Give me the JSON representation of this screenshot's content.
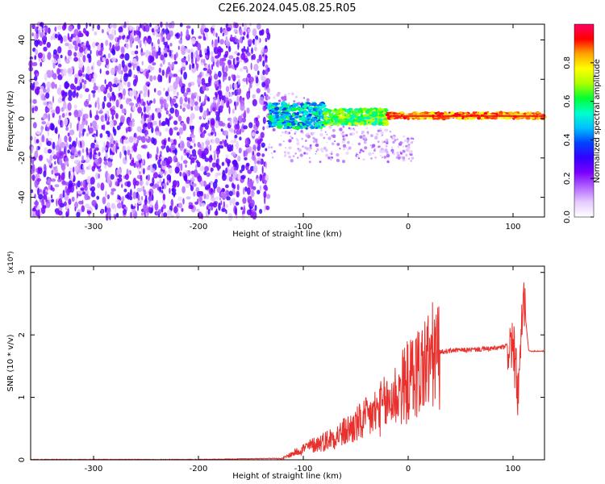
{
  "title": "C2E6.2024.045.08.25.R05",
  "chart_data": [
    {
      "type": "heatmap",
      "xlabel": "Height of straight line (km)",
      "ylabel": "Frequency (Hz)",
      "xlim": [
        -360,
        130
      ],
      "ylim": [
        -50,
        48
      ],
      "xticks": [
        -300,
        -200,
        -100,
        0,
        100
      ],
      "yticks": [
        -40,
        -20,
        0,
        20,
        40
      ],
      "colorbar": {
        "label": "Normalized spectral amplitude",
        "range": [
          0.0,
          1.0
        ],
        "ticks": [
          0.0,
          0.2,
          0.4,
          0.6,
          0.8
        ],
        "colormap": [
          "#ffffff",
          "#e6ccff",
          "#b366ff",
          "#7a00ff",
          "#3300ff",
          "#0044ff",
          "#00bfff",
          "#00ffcc",
          "#00ff33",
          "#aaff00",
          "#ffff00",
          "#ffa500",
          "#ff0000",
          "#ff0066"
        ]
      },
      "regions": [
        {
          "x": [
            -360,
            -133
          ],
          "freq": [
            -50,
            48
          ],
          "amplitude": [
            0.05,
            0.3
          ],
          "description": "noise"
        },
        {
          "x": [
            -133,
            -80
          ],
          "freq": [
            -5,
            8
          ],
          "amplitude": [
            0.35,
            0.65
          ]
        },
        {
          "x": [
            -80,
            -20
          ],
          "freq": [
            -3,
            5
          ],
          "amplitude": [
            0.5,
            0.75
          ]
        },
        {
          "x": [
            -20,
            130
          ],
          "freq": [
            0,
            3
          ],
          "amplitude": [
            0.75,
            0.95
          ]
        }
      ]
    },
    {
      "type": "line",
      "xlabel": "Height of straight line (km)",
      "ylabel": "SNR (10 * v/v)",
      "yscale_label": "(x10⁴)",
      "xlim": [
        -360,
        130
      ],
      "ylim": [
        0,
        3.1
      ],
      "xticks": [
        -300,
        -200,
        -100,
        0,
        100
      ],
      "yticks": [
        0,
        1,
        2,
        3
      ],
      "color": "#e8302c",
      "series": [
        {
          "x": [
            -360,
            -200,
            -120,
            -110,
            -100,
            -80,
            -60,
            -40,
            -20,
            0,
            20,
            30,
            40,
            60,
            80,
            90,
            100,
            105,
            110,
            115,
            130
          ],
          "values": [
            0.0,
            0.0,
            0.02,
            0.1,
            0.18,
            0.3,
            0.45,
            0.65,
            0.9,
            1.25,
            1.6,
            1.72,
            1.75,
            1.76,
            1.78,
            1.8,
            1.85,
            1.0,
            2.6,
            1.74,
            1.74
          ]
        }
      ]
    }
  ]
}
